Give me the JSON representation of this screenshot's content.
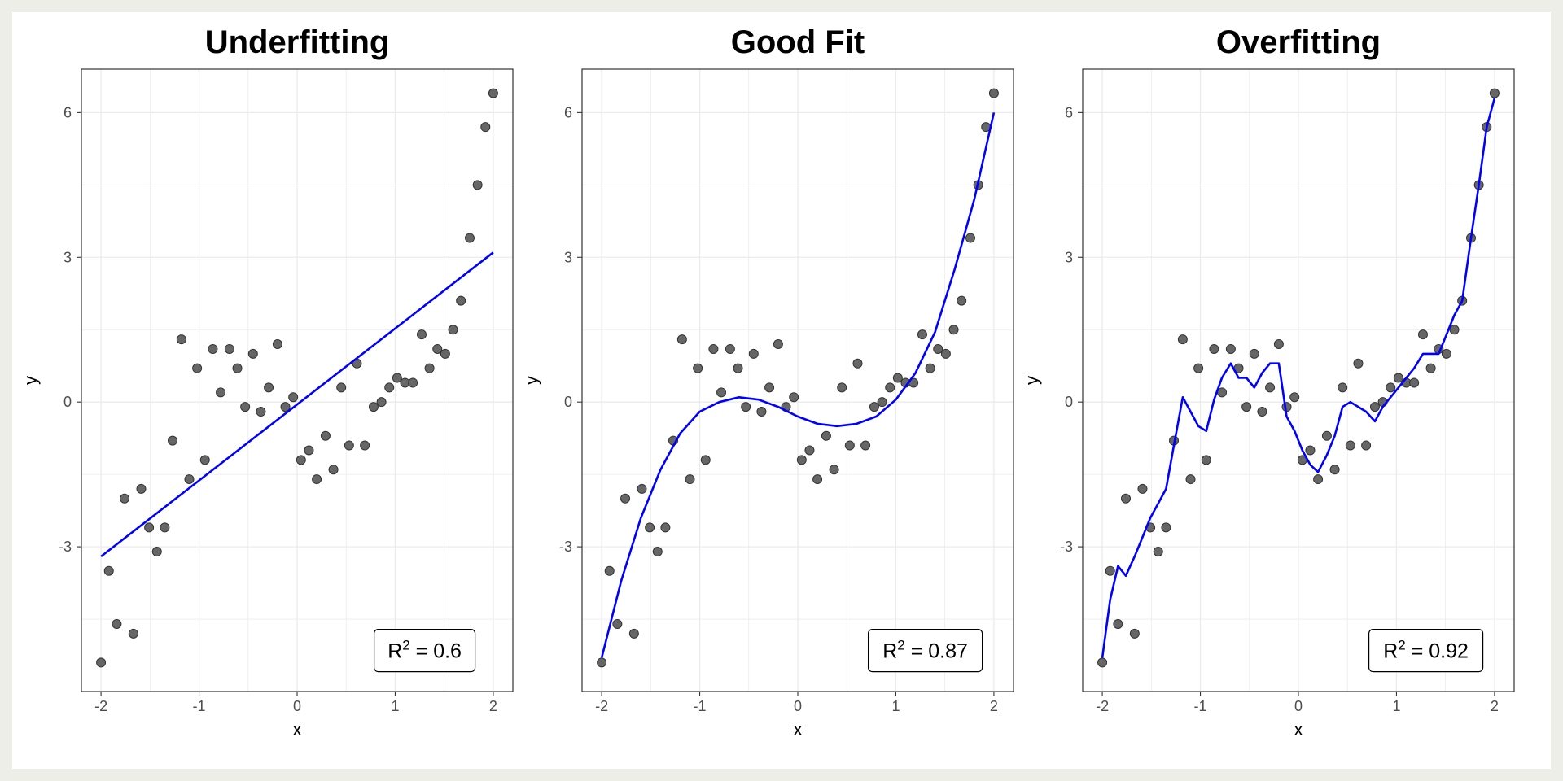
{
  "colors": {
    "point_fill": "#666666",
    "point_stroke": "#333333",
    "fit_line": "#0000ff",
    "grid": "#ebebeb",
    "panel_border": "#333333",
    "tick_text": "#4d4d4d"
  },
  "chart_data": [
    {
      "type": "scatter",
      "title": "Underfitting",
      "xlabel": "x",
      "ylabel": "y",
      "xlim": [
        -2.2,
        2.2
      ],
      "ylim": [
        -6.0,
        6.9
      ],
      "xticks": [
        -2,
        -1,
        0,
        1,
        2
      ],
      "xtick_labels": [
        "-2",
        "-1",
        "0",
        "1",
        "2"
      ],
      "yticks": [
        -3,
        0,
        3,
        6
      ],
      "ytick_labels": [
        "-3",
        "0",
        "3",
        "6"
      ],
      "grid": true,
      "annotation": {
        "base": "R",
        "sup": "2",
        "rest": " = 0.6"
      },
      "points": {
        "x": [
          -2.0,
          -1.92,
          -1.84,
          -1.76,
          -1.67,
          -1.59,
          -1.51,
          -1.43,
          -1.35,
          -1.27,
          -1.18,
          -1.1,
          -1.02,
          -0.94,
          -0.86,
          -0.78,
          -0.69,
          -0.61,
          -0.53,
          -0.45,
          -0.37,
          -0.29,
          -0.2,
          -0.12,
          -0.04,
          0.04,
          0.12,
          0.2,
          0.29,
          0.37,
          0.45,
          0.53,
          0.61,
          0.69,
          0.78,
          0.86,
          0.94,
          1.02,
          1.1,
          1.18,
          1.27,
          1.35,
          1.43,
          1.51,
          1.59,
          1.67,
          1.76,
          1.84,
          1.92,
          2.0
        ],
        "y": [
          -5.4,
          -3.5,
          -4.6,
          -2.0,
          -4.8,
          -1.8,
          -2.6,
          -3.1,
          -2.6,
          -0.8,
          1.3,
          -1.6,
          0.7,
          -1.2,
          1.1,
          0.2,
          1.1,
          0.7,
          -0.1,
          1.0,
          -0.2,
          0.3,
          1.2,
          -0.1,
          0.1,
          -1.2,
          -1.0,
          -1.6,
          -0.7,
          -1.4,
          0.3,
          -0.9,
          0.8,
          -0.9,
          -0.1,
          0.0,
          0.3,
          0.5,
          0.4,
          0.4,
          1.4,
          0.7,
          1.1,
          1.0,
          1.5,
          2.1,
          3.4,
          4.5,
          5.7,
          6.4
        ]
      },
      "fit": {
        "x": [
          -2.0,
          2.0
        ],
        "y": [
          -3.2,
          3.1
        ]
      }
    },
    {
      "type": "scatter",
      "title": "Good Fit",
      "xlabel": "x",
      "ylabel": "y",
      "xlim": [
        -2.2,
        2.2
      ],
      "ylim": [
        -6.0,
        6.9
      ],
      "xticks": [
        -2,
        -1,
        0,
        1,
        2
      ],
      "xtick_labels": [
        "-2",
        "-1",
        "0",
        "1",
        "2"
      ],
      "yticks": [
        -3,
        0,
        3,
        6
      ],
      "ytick_labels": [
        "-3",
        "0",
        "3",
        "6"
      ],
      "grid": true,
      "annotation": {
        "base": "R",
        "sup": "2",
        "rest": " = 0.87"
      },
      "points": {
        "x": [
          -2.0,
          -1.92,
          -1.84,
          -1.76,
          -1.67,
          -1.59,
          -1.51,
          -1.43,
          -1.35,
          -1.27,
          -1.18,
          -1.1,
          -1.02,
          -0.94,
          -0.86,
          -0.78,
          -0.69,
          -0.61,
          -0.53,
          -0.45,
          -0.37,
          -0.29,
          -0.2,
          -0.12,
          -0.04,
          0.04,
          0.12,
          0.2,
          0.29,
          0.37,
          0.45,
          0.53,
          0.61,
          0.69,
          0.78,
          0.86,
          0.94,
          1.02,
          1.1,
          1.18,
          1.27,
          1.35,
          1.43,
          1.51,
          1.59,
          1.67,
          1.76,
          1.84,
          1.92,
          2.0
        ],
        "y": [
          -5.4,
          -3.5,
          -4.6,
          -2.0,
          -4.8,
          -1.8,
          -2.6,
          -3.1,
          -2.6,
          -0.8,
          1.3,
          -1.6,
          0.7,
          -1.2,
          1.1,
          0.2,
          1.1,
          0.7,
          -0.1,
          1.0,
          -0.2,
          0.3,
          1.2,
          -0.1,
          0.1,
          -1.2,
          -1.0,
          -1.6,
          -0.7,
          -1.4,
          0.3,
          -0.9,
          0.8,
          -0.9,
          -0.1,
          0.0,
          0.3,
          0.5,
          0.4,
          0.4,
          1.4,
          0.7,
          1.1,
          1.0,
          1.5,
          2.1,
          3.4,
          4.5,
          5.7,
          6.4
        ]
      },
      "fit": {
        "x": [
          -2.0,
          -1.8,
          -1.6,
          -1.4,
          -1.2,
          -1.0,
          -0.8,
          -0.6,
          -0.4,
          -0.2,
          0.0,
          0.2,
          0.4,
          0.6,
          0.8,
          1.0,
          1.2,
          1.4,
          1.6,
          1.8,
          2.0
        ],
        "y": [
          -5.3,
          -3.7,
          -2.4,
          -1.4,
          -0.65,
          -0.2,
          0.0,
          0.1,
          0.05,
          -0.1,
          -0.3,
          -0.45,
          -0.5,
          -0.45,
          -0.3,
          0.05,
          0.6,
          1.45,
          2.75,
          4.2,
          6.0
        ]
      }
    },
    {
      "type": "scatter",
      "title": "Overfitting",
      "xlabel": "x",
      "ylabel": "y",
      "xlim": [
        -2.2,
        2.2
      ],
      "ylim": [
        -6.0,
        6.9
      ],
      "xticks": [
        -2,
        -1,
        0,
        1,
        2
      ],
      "xtick_labels": [
        "-2",
        "-1",
        "0",
        "1",
        "2"
      ],
      "yticks": [
        -3,
        0,
        3,
        6
      ],
      "ytick_labels": [
        "-3",
        "0",
        "3",
        "6"
      ],
      "grid": true,
      "annotation": {
        "base": "R",
        "sup": "2",
        "rest": " = 0.92"
      },
      "points": {
        "x": [
          -2.0,
          -1.92,
          -1.84,
          -1.76,
          -1.67,
          -1.59,
          -1.51,
          -1.43,
          -1.35,
          -1.27,
          -1.18,
          -1.1,
          -1.02,
          -0.94,
          -0.86,
          -0.78,
          -0.69,
          -0.61,
          -0.53,
          -0.45,
          -0.37,
          -0.29,
          -0.2,
          -0.12,
          -0.04,
          0.04,
          0.12,
          0.2,
          0.29,
          0.37,
          0.45,
          0.53,
          0.61,
          0.69,
          0.78,
          0.86,
          0.94,
          1.02,
          1.1,
          1.18,
          1.27,
          1.35,
          1.43,
          1.51,
          1.59,
          1.67,
          1.76,
          1.84,
          1.92,
          2.0
        ],
        "y": [
          -5.4,
          -3.5,
          -4.6,
          -2.0,
          -4.8,
          -1.8,
          -2.6,
          -3.1,
          -2.6,
          -0.8,
          1.3,
          -1.6,
          0.7,
          -1.2,
          1.1,
          0.2,
          1.1,
          0.7,
          -0.1,
          1.0,
          -0.2,
          0.3,
          1.2,
          -0.1,
          0.1,
          -1.2,
          -1.0,
          -1.6,
          -0.7,
          -1.4,
          0.3,
          -0.9,
          0.8,
          -0.9,
          -0.1,
          0.0,
          0.3,
          0.5,
          0.4,
          0.4,
          1.4,
          0.7,
          1.1,
          1.0,
          1.5,
          2.1,
          3.4,
          4.5,
          5.7,
          6.4
        ]
      },
      "fit": {
        "x": [
          -2.0,
          -1.92,
          -1.84,
          -1.76,
          -1.67,
          -1.59,
          -1.51,
          -1.43,
          -1.35,
          -1.27,
          -1.18,
          -1.1,
          -1.02,
          -0.94,
          -0.86,
          -0.78,
          -0.69,
          -0.61,
          -0.53,
          -0.45,
          -0.37,
          -0.29,
          -0.2,
          -0.12,
          -0.04,
          0.04,
          0.12,
          0.2,
          0.29,
          0.37,
          0.45,
          0.53,
          0.61,
          0.69,
          0.78,
          0.86,
          0.94,
          1.02,
          1.1,
          1.18,
          1.27,
          1.35,
          1.43,
          1.51,
          1.59,
          1.67,
          1.76,
          1.84,
          1.92,
          2.0
        ],
        "y": [
          -5.3,
          -4.1,
          -3.4,
          -3.6,
          -3.2,
          -2.8,
          -2.4,
          -2.1,
          -1.8,
          -0.9,
          0.1,
          -0.2,
          -0.5,
          -0.6,
          0.05,
          0.5,
          0.8,
          0.5,
          0.5,
          0.3,
          0.6,
          0.8,
          0.8,
          -0.3,
          -0.6,
          -1.0,
          -1.3,
          -1.45,
          -1.1,
          -0.7,
          -0.1,
          0.0,
          -0.1,
          -0.2,
          -0.4,
          -0.1,
          0.1,
          0.3,
          0.5,
          0.7,
          1.0,
          1.0,
          1.0,
          1.4,
          1.8,
          2.1,
          3.4,
          4.5,
          5.7,
          6.3
        ]
      }
    }
  ]
}
